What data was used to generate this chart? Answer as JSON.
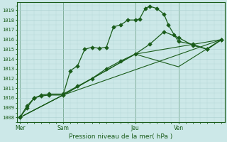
{
  "title": "",
  "xlabel": "Pression niveau de la mer( hPa )",
  "bg_color": "#cce8e8",
  "grid_color": "#aad0d0",
  "line_color": "#1a5c1a",
  "ylim": [
    1007.5,
    1019.8
  ],
  "yticks": [
    1008,
    1009,
    1010,
    1011,
    1012,
    1013,
    1014,
    1015,
    1016,
    1017,
    1018,
    1019
  ],
  "day_labels": [
    "Mer",
    "Sam",
    "Jeu",
    "Ven"
  ],
  "day_positions": [
    0,
    3,
    8,
    11
  ],
  "vlines_x": [
    0,
    3,
    8,
    11
  ],
  "xlim": [
    -0.2,
    14.2
  ],
  "line1_x": [
    0,
    0.5,
    1,
    1.5,
    2,
    3,
    3.5,
    4,
    4.5,
    5,
    5.5,
    6,
    6.5,
    7,
    7.5,
    8,
    8.3,
    8.7,
    9,
    9.5,
    10,
    10.3,
    10.7,
    11,
    12,
    13,
    14
  ],
  "line1_y": [
    1008.0,
    1009.0,
    1010.0,
    1010.2,
    1010.3,
    1010.3,
    1012.8,
    1013.3,
    1015.0,
    1015.2,
    1015.1,
    1015.2,
    1017.3,
    1017.5,
    1018.0,
    1018.0,
    1018.1,
    1019.2,
    1019.4,
    1019.2,
    1018.6,
    1017.5,
    1016.5,
    1015.8,
    1015.5,
    1015.0,
    1016.0
  ],
  "line2_x": [
    0,
    0.5,
    1,
    1.5,
    2,
    3,
    4,
    5,
    6,
    7,
    8,
    9,
    10,
    11,
    12,
    13,
    14
  ],
  "line2_y": [
    1008.0,
    1009.2,
    1010.0,
    1010.3,
    1010.4,
    1010.4,
    1011.2,
    1012.0,
    1013.0,
    1013.8,
    1014.5,
    1015.5,
    1016.8,
    1016.2,
    1015.4,
    1015.0,
    1016.0
  ],
  "line3_x": [
    0,
    3,
    8,
    11,
    14
  ],
  "line3_y": [
    1008.0,
    1010.3,
    1014.5,
    1013.2,
    1016.0
  ],
  "line4_x": [
    0,
    3,
    8,
    14
  ],
  "line4_y": [
    1008.0,
    1010.3,
    1014.5,
    1016.0
  ],
  "line5_x": [
    0,
    3,
    14
  ],
  "line5_y": [
    1008.0,
    1010.3,
    1016.0
  ]
}
